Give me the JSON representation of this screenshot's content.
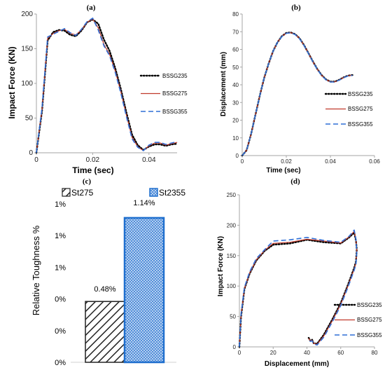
{
  "colors": {
    "BSSG235": "#000000",
    "BSSG275": "#c0392b",
    "BSSG355": "#2f6fd6",
    "st275": "#222222",
    "st2355": "#1f6fce"
  },
  "chart_data": [
    {
      "id": "a",
      "panel_label": "(a)",
      "type": "line",
      "xlabel": "Time (sec)",
      "ylabel": "Impact Force (KN)",
      "xlim": [
        0,
        0.05
      ],
      "ylim": [
        0,
        200
      ],
      "xticks": [
        0,
        0.02,
        0.04
      ],
      "xtick_labels": [
        "0",
        "0.02",
        "0.04"
      ],
      "yticks": [
        0,
        50,
        100,
        150,
        200
      ],
      "ytick_labels": [
        "0",
        "50",
        "100",
        "150",
        "200"
      ],
      "legend_position": "right",
      "series": [
        {
          "name": "BSSG235",
          "style": "dotted",
          "x": [
            0,
            0.002,
            0.004,
            0.006,
            0.008,
            0.01,
            0.012,
            0.014,
            0.016,
            0.018,
            0.02,
            0.022,
            0.024,
            0.026,
            0.028,
            0.03,
            0.032,
            0.034,
            0.036,
            0.038,
            0.04,
            0.042,
            0.044,
            0.046,
            0.048,
            0.05
          ],
          "y": [
            0,
            60,
            162,
            174,
            177,
            176,
            170,
            168,
            176,
            188,
            192,
            186,
            163,
            147,
            122,
            92,
            58,
            26,
            11,
            4,
            9,
            12,
            12,
            10,
            12,
            13
          ]
        },
        {
          "name": "BSSG275",
          "style": "solid",
          "x": [
            0,
            0.002,
            0.004,
            0.006,
            0.008,
            0.01,
            0.012,
            0.014,
            0.016,
            0.018,
            0.02,
            0.022,
            0.024,
            0.026,
            0.028,
            0.03,
            0.032,
            0.034,
            0.036,
            0.038,
            0.04,
            0.042,
            0.044,
            0.046,
            0.048,
            0.05
          ],
          "y": [
            0,
            62,
            165,
            172,
            176,
            178,
            172,
            170,
            177,
            188,
            193,
            180,
            156,
            142,
            118,
            88,
            54,
            22,
            9,
            3,
            10,
            14,
            14,
            11,
            13,
            15
          ]
        },
        {
          "name": "BSSG355",
          "style": "dashed",
          "x": [
            0,
            0.002,
            0.004,
            0.006,
            0.008,
            0.01,
            0.012,
            0.014,
            0.016,
            0.018,
            0.02,
            0.022,
            0.024,
            0.026,
            0.028,
            0.03,
            0.032,
            0.034,
            0.036,
            0.038,
            0.04,
            0.042,
            0.044,
            0.046,
            0.048,
            0.05
          ],
          "y": [
            0,
            64,
            167,
            171,
            175,
            179,
            173,
            169,
            178,
            189,
            194,
            177,
            154,
            140,
            116,
            86,
            52,
            20,
            8,
            3,
            11,
            15,
            15,
            12,
            14,
            16
          ]
        }
      ]
    },
    {
      "id": "b",
      "panel_label": "(b)",
      "type": "line",
      "xlabel": "Time (sec)",
      "ylabel": "Displacement (mm)",
      "xlim": [
        0,
        0.06
      ],
      "ylim": [
        0,
        80
      ],
      "xticks": [
        0,
        0.02,
        0.04,
        0.06
      ],
      "xtick_labels": [
        "0",
        "0.02",
        "0.04",
        "0.06"
      ],
      "yticks": [
        0,
        10,
        20,
        30,
        40,
        50,
        60,
        70,
        80
      ],
      "ytick_labels": [
        "0",
        "10",
        "20",
        "30",
        "40",
        "50",
        "60",
        "70",
        "80"
      ],
      "legend_position": "right",
      "series": [
        {
          "name": "BSSG235",
          "style": "dotted",
          "x": [
            0,
            0.002,
            0.004,
            0.006,
            0.008,
            0.01,
            0.012,
            0.014,
            0.016,
            0.018,
            0.02,
            0.022,
            0.024,
            0.026,
            0.028,
            0.03,
            0.032,
            0.034,
            0.036,
            0.038,
            0.04,
            0.042,
            0.044,
            0.046,
            0.048,
            0.05
          ],
          "y": [
            0,
            3,
            12,
            23,
            34,
            44,
            52,
            59,
            64,
            67.5,
            69.3,
            69.6,
            68.6,
            66.3,
            62.5,
            58,
            53.3,
            49,
            45.5,
            43,
            41.8,
            41.8,
            42.8,
            44.2,
            45.2,
            45.5
          ]
        },
        {
          "name": "BSSG275",
          "style": "solid",
          "x": [
            0,
            0.002,
            0.004,
            0.006,
            0.008,
            0.01,
            0.012,
            0.014,
            0.016,
            0.018,
            0.02,
            0.022,
            0.024,
            0.026,
            0.028,
            0.03,
            0.032,
            0.034,
            0.036,
            0.038,
            0.04,
            0.042,
            0.044,
            0.046,
            0.048,
            0.05
          ],
          "y": [
            0,
            3,
            12,
            23,
            34,
            44,
            52,
            59,
            64,
            67.4,
            69.2,
            69.5,
            68.5,
            66.2,
            62.4,
            57.9,
            53.2,
            48.9,
            45.4,
            42.9,
            41.7,
            41.7,
            42.7,
            44.1,
            45.1,
            45.4
          ]
        },
        {
          "name": "BSSG355",
          "style": "dashed",
          "x": [
            0,
            0.002,
            0.004,
            0.006,
            0.008,
            0.01,
            0.012,
            0.014,
            0.016,
            0.018,
            0.02,
            0.022,
            0.024,
            0.026,
            0.028,
            0.03,
            0.032,
            0.034,
            0.036,
            0.038,
            0.04,
            0.042,
            0.044,
            0.046,
            0.048,
            0.05
          ],
          "y": [
            0,
            3,
            12,
            23,
            34,
            44,
            52,
            59,
            64,
            67.3,
            69.1,
            69.4,
            68.4,
            66.1,
            62.3,
            57.8,
            53.1,
            48.8,
            45.3,
            42.8,
            41.6,
            41.6,
            42.6,
            44,
            45,
            45.3
          ]
        }
      ]
    },
    {
      "id": "c",
      "panel_label": "(c)",
      "type": "bar",
      "ylabel": "Relative Toughness %",
      "ylim": [
        0,
        1.25
      ],
      "yticks": [
        0,
        0.25,
        0.5,
        0.75,
        1.0,
        1.25
      ],
      "ytick_labels": [
        "0%",
        "0%",
        "0%",
        "1%",
        "1%",
        "1%"
      ],
      "legend_position": "top",
      "series": [
        {
          "name": "St275",
          "value": 0.48,
          "label": "0.48%",
          "pattern": "diagonal-hatch"
        },
        {
          "name": "St2355",
          "value": 1.14,
          "label": "1.14%",
          "pattern": "crosshatch"
        }
      ]
    },
    {
      "id": "d",
      "panel_label": "(d)",
      "type": "line",
      "xlabel": "Displacement (mm)",
      "ylabel": "Impact Force (KN)",
      "xlim": [
        0,
        80
      ],
      "ylim": [
        0,
        250
      ],
      "xticks": [
        0,
        20,
        40,
        60,
        80
      ],
      "xtick_labels": [
        "0",
        "20",
        "40",
        "60",
        "80"
      ],
      "yticks": [
        0,
        50,
        100,
        150,
        200,
        250
      ],
      "ytick_labels": [
        "0",
        "50",
        "100",
        "150",
        "200",
        "250"
      ],
      "legend_position": "right",
      "series": [
        {
          "name": "BSSG235",
          "style": "dotted",
          "x": [
            0,
            1,
            3,
            6,
            10,
            15,
            20,
            30,
            40,
            50,
            60,
            65,
            68,
            69,
            69.5,
            69,
            68,
            64,
            60,
            55,
            50,
            46,
            44,
            43,
            42,
            41
          ],
          "y": [
            0,
            50,
            95,
            120,
            142,
            158,
            168,
            170,
            176,
            172,
            170,
            180,
            188,
            175,
            160,
            140,
            130,
            100,
            72,
            45,
            20,
            5,
            6,
            12,
            10,
            15
          ]
        },
        {
          "name": "BSSG275",
          "style": "solid",
          "x": [
            0,
            1,
            3,
            6,
            10,
            15,
            20,
            30,
            40,
            50,
            60,
            65,
            68,
            69,
            69.5,
            69,
            68,
            64,
            60,
            55,
            50,
            46,
            44,
            43,
            42,
            41
          ],
          "y": [
            0,
            52,
            96,
            121,
            143,
            159,
            170,
            172,
            177,
            174,
            171,
            181,
            190,
            176,
            158,
            138,
            128,
            98,
            70,
            43,
            18,
            4,
            6,
            11,
            10,
            14
          ]
        },
        {
          "name": "BSSG355",
          "style": "dashed",
          "x": [
            0,
            1,
            3,
            6,
            10,
            15,
            20,
            30,
            40,
            50,
            60,
            65,
            68,
            69,
            69.5,
            69,
            68,
            64,
            60,
            55,
            50,
            46,
            44,
            43,
            42,
            41
          ],
          "y": [
            0,
            54,
            98,
            123,
            145,
            160,
            174,
            176,
            180,
            175,
            172,
            182,
            192,
            177,
            156,
            136,
            126,
            96,
            68,
            41,
            16,
            3,
            5,
            10,
            9,
            13
          ]
        }
      ]
    }
  ]
}
